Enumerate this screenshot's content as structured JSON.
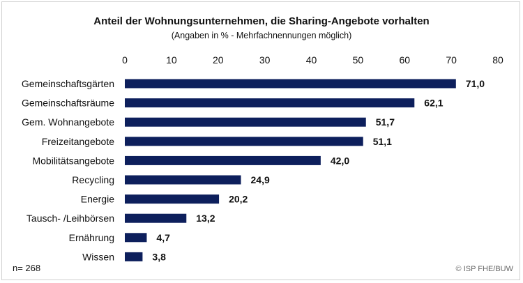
{
  "chart_data": {
    "type": "bar",
    "orientation": "horizontal",
    "title": "Anteil der Wohnungsunternehmen, die Sharing-Angebote vorhalten",
    "subtitle": "(Angaben in % - Mehrfachnennungen möglich)",
    "categories": [
      "Gemeinschaftsgärten",
      "Gemeinschaftsräume",
      "Gem. Wohnangebote",
      "Freizeitangebote",
      "Mobilitätsangebote",
      "Recycling",
      "Energie",
      "Tausch- /Leihbörsen",
      "Ernährung",
      "Wissen"
    ],
    "values": [
      71.0,
      62.1,
      51.7,
      51.1,
      42.0,
      24.9,
      20.2,
      13.2,
      4.7,
      3.8
    ],
    "value_labels": [
      "71,0",
      "62,1",
      "51,7",
      "51,1",
      "42,0",
      "24,9",
      "20,2",
      "13,2",
      "4,7",
      "3,8"
    ],
    "xlim": [
      0,
      80
    ],
    "x_ticks": [
      0,
      10,
      20,
      30,
      40,
      50,
      60,
      70,
      80
    ],
    "x_axis_position": "top",
    "grid": false,
    "bar_color": "#0d1f5c"
  },
  "footnote": {
    "n": "n= 268",
    "copyright": "© ISP FHE/BUW"
  }
}
